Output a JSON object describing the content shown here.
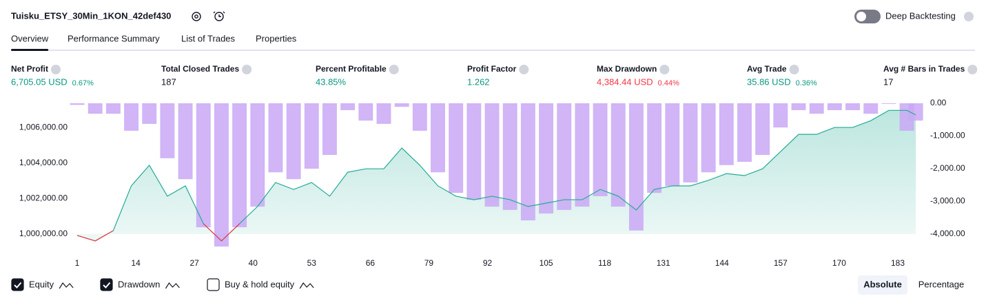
{
  "header": {
    "title": "Tuisku_ETSY_30Min_1KON_42def430",
    "toggle_label": "Deep Backtesting",
    "tabs": [
      "Overview",
      "Performance Summary",
      "List of Trades",
      "Properties"
    ],
    "active_tab": 0
  },
  "metrics": [
    {
      "label": "Net Profit",
      "value": "6,705.05 USD",
      "pct": "0.67%",
      "color": "#089981"
    },
    {
      "label": "Total Closed Trades",
      "value": "187",
      "color": "#131722"
    },
    {
      "label": "Percent Profitable",
      "value": "43.85%",
      "color": "#089981"
    },
    {
      "label": "Profit Factor",
      "value": "1.262",
      "color": "#089981"
    },
    {
      "label": "Max Drawdown",
      "value": "4,384.44 USD",
      "pct": "0.44%",
      "color": "#f23645"
    },
    {
      "label": "Avg Trade",
      "value": "35.86 USD",
      "pct": "0.36%",
      "color": "#089981"
    },
    {
      "label": "Avg # Bars in Trades",
      "value": "17",
      "color": "#131722"
    }
  ],
  "chart": {
    "type": "line+bar",
    "x": [
      1,
      5,
      9,
      13,
      17,
      21,
      25,
      29,
      33,
      37,
      41,
      45,
      49,
      53,
      57,
      61,
      65,
      69,
      73,
      77,
      81,
      85,
      89,
      93,
      97,
      101,
      105,
      109,
      113,
      117,
      121,
      125,
      129,
      133,
      137,
      141,
      145,
      149,
      153,
      157,
      161,
      165,
      169,
      173,
      177,
      181,
      185,
      187
    ],
    "series": [
      {
        "type": "line",
        "color": "#22ab94",
        "loss_color": "#f23645",
        "baseline": 1000000,
        "values": [
          999920,
          999610,
          1000190,
          1002710,
          1003870,
          1002130,
          1002710,
          1000580,
          999610,
          1000580,
          1001550,
          1002900,
          1002510,
          1002900,
          1002130,
          1003480,
          1003670,
          1003670,
          1004840,
          1003870,
          1002710,
          1002130,
          1001930,
          1002130,
          1001930,
          1001550,
          1001740,
          1001930,
          1001930,
          1002510,
          1002130,
          1001350,
          1002510,
          1002710,
          1002710,
          1003020,
          1003400,
          1003290,
          1003670,
          1004640,
          1005610,
          1005610,
          1006000,
          1006000,
          1006380,
          1006960,
          1006960,
          1006705
        ]
      },
      {
        "type": "bar",
        "axis": "y2",
        "color": "#c9a8f5",
        "values": [
          -50,
          -320,
          -320,
          -840,
          -630,
          -1680,
          -2320,
          -3790,
          -4380,
          -3790,
          -3160,
          -2110,
          -2320,
          -2000,
          -1580,
          -210,
          -530,
          -630,
          -110,
          -840,
          -2110,
          -2740,
          -2950,
          -3160,
          -3260,
          -3580,
          -3370,
          -3260,
          -3160,
          -2840,
          -3160,
          -3890,
          -2740,
          -2530,
          -2420,
          -2110,
          -1890,
          -1790,
          -1580,
          -740,
          -210,
          -320,
          -210,
          -210,
          -320,
          -20,
          -840,
          -530
        ]
      }
    ],
    "xlim": [
      0.69,
      188.35
    ],
    "xticks": [
      1,
      14,
      27,
      40,
      53,
      66,
      79,
      92,
      105,
      118,
      131,
      144,
      157,
      170,
      183
    ],
    "ylim": [
      999220,
      1007360
    ],
    "yticks": [
      {
        "value": 1000000,
        "label": "1,000,000.00"
      },
      {
        "value": 1002000,
        "label": "1,002,000.00"
      },
      {
        "value": 1004000,
        "label": "1,004,000.00"
      },
      {
        "value": 1006000,
        "label": "1,006,000.00"
      }
    ],
    "y2lim": [
      -4420,
      0
    ],
    "y2ticks": [
      {
        "value": 0,
        "label": "0.00"
      },
      {
        "value": -1000,
        "label": "-1,000.00"
      },
      {
        "value": -2000,
        "label": "-2,000.00"
      },
      {
        "value": -3000,
        "label": "-3,000.00"
      },
      {
        "value": -4000,
        "label": "-4,000.00"
      }
    ],
    "legend": [
      {
        "label": "Equity",
        "checked": true
      },
      {
        "label": "Drawdown",
        "checked": true
      },
      {
        "label": "Buy & hold equity",
        "checked": false
      }
    ],
    "modes": [
      "Absolute",
      "Percentage"
    ],
    "active_mode": 0
  }
}
